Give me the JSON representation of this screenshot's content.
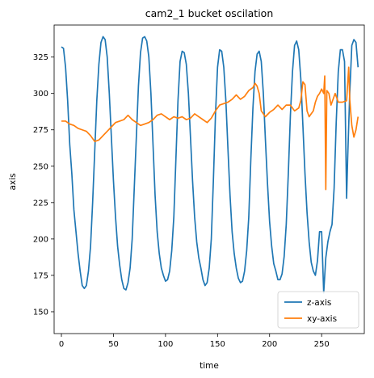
{
  "chart_data": {
    "type": "line",
    "title": "cam2_1 bucket oscilation",
    "xlabel": "time",
    "ylabel": "axis",
    "xlim": [
      -7,
      291
    ],
    "ylim": [
      135,
      347
    ],
    "xticks": [
      0,
      50,
      100,
      150,
      200,
      250
    ],
    "yticks": [
      150,
      175,
      200,
      225,
      250,
      275,
      300,
      325
    ],
    "grid": false,
    "legend_position": "lower-right",
    "series": [
      {
        "name": "z-axis",
        "color": "#1f77b4",
        "points": [
          [
            0,
            332
          ],
          [
            2,
            331
          ],
          [
            4,
            318
          ],
          [
            6,
            295
          ],
          [
            8,
            265
          ],
          [
            10,
            245
          ],
          [
            12,
            220
          ],
          [
            14,
            205
          ],
          [
            16,
            190
          ],
          [
            18,
            178
          ],
          [
            20,
            168
          ],
          [
            22,
            166
          ],
          [
            24,
            168
          ],
          [
            26,
            178
          ],
          [
            28,
            195
          ],
          [
            30,
            225
          ],
          [
            32,
            260
          ],
          [
            34,
            295
          ],
          [
            36,
            320
          ],
          [
            38,
            335
          ],
          [
            40,
            339
          ],
          [
            42,
            337
          ],
          [
            44,
            325
          ],
          [
            46,
            300
          ],
          [
            48,
            270
          ],
          [
            50,
            240
          ],
          [
            52,
            215
          ],
          [
            54,
            195
          ],
          [
            56,
            182
          ],
          [
            58,
            172
          ],
          [
            60,
            166
          ],
          [
            62,
            165
          ],
          [
            64,
            170
          ],
          [
            66,
            180
          ],
          [
            68,
            200
          ],
          [
            70,
            235
          ],
          [
            72,
            270
          ],
          [
            74,
            305
          ],
          [
            76,
            328
          ],
          [
            78,
            338
          ],
          [
            80,
            339
          ],
          [
            82,
            336
          ],
          [
            84,
            325
          ],
          [
            86,
            300
          ],
          [
            88,
            265
          ],
          [
            90,
            230
          ],
          [
            92,
            205
          ],
          [
            94,
            190
          ],
          [
            96,
            180
          ],
          [
            98,
            175
          ],
          [
            100,
            171
          ],
          [
            102,
            172
          ],
          [
            104,
            178
          ],
          [
            106,
            192
          ],
          [
            108,
            215
          ],
          [
            110,
            255
          ],
          [
            112,
            295
          ],
          [
            114,
            322
          ],
          [
            116,
            329
          ],
          [
            118,
            328
          ],
          [
            120,
            320
          ],
          [
            122,
            300
          ],
          [
            124,
            270
          ],
          [
            126,
            240
          ],
          [
            128,
            215
          ],
          [
            130,
            198
          ],
          [
            132,
            187
          ],
          [
            134,
            180
          ],
          [
            136,
            172
          ],
          [
            138,
            168
          ],
          [
            140,
            170
          ],
          [
            142,
            180
          ],
          [
            144,
            200
          ],
          [
            146,
            240
          ],
          [
            148,
            285
          ],
          [
            150,
            318
          ],
          [
            152,
            330
          ],
          [
            154,
            329
          ],
          [
            156,
            318
          ],
          [
            158,
            295
          ],
          [
            160,
            262
          ],
          [
            162,
            230
          ],
          [
            164,
            205
          ],
          [
            166,
            190
          ],
          [
            168,
            180
          ],
          [
            170,
            173
          ],
          [
            172,
            170
          ],
          [
            174,
            171
          ],
          [
            176,
            178
          ],
          [
            178,
            192
          ],
          [
            180,
            215
          ],
          [
            182,
            255
          ],
          [
            184,
            290
          ],
          [
            186,
            315
          ],
          [
            188,
            327
          ],
          [
            190,
            329
          ],
          [
            192,
            322
          ],
          [
            194,
            300
          ],
          [
            196,
            268
          ],
          [
            198,
            238
          ],
          [
            200,
            212
          ],
          [
            202,
            195
          ],
          [
            204,
            183
          ],
          [
            206,
            178
          ],
          [
            208,
            172
          ],
          [
            210,
            172
          ],
          [
            212,
            176
          ],
          [
            214,
            188
          ],
          [
            216,
            210
          ],
          [
            218,
            245
          ],
          [
            220,
            285
          ],
          [
            222,
            315
          ],
          [
            224,
            333
          ],
          [
            226,
            336
          ],
          [
            228,
            330
          ],
          [
            230,
            310
          ],
          [
            232,
            278
          ],
          [
            234,
            245
          ],
          [
            236,
            218
          ],
          [
            238,
            198
          ],
          [
            240,
            184
          ],
          [
            242,
            178
          ],
          [
            244,
            175
          ],
          [
            246,
            185
          ],
          [
            248,
            205
          ],
          [
            250,
            205
          ],
          [
            252,
            163
          ],
          [
            254,
            187
          ],
          [
            256,
            198
          ],
          [
            258,
            205
          ],
          [
            260,
            210
          ],
          [
            262,
            235
          ],
          [
            264,
            280
          ],
          [
            266,
            315
          ],
          [
            268,
            330
          ],
          [
            270,
            330
          ],
          [
            272,
            322
          ],
          [
            274,
            228
          ],
          [
            275,
            255
          ],
          [
            277,
            300
          ],
          [
            279,
            333
          ],
          [
            281,
            337
          ],
          [
            283,
            335
          ],
          [
            285,
            318
          ]
        ]
      },
      {
        "name": "xy-axis",
        "color": "#ff7f0e",
        "points": [
          [
            0,
            281
          ],
          [
            4,
            281
          ],
          [
            8,
            279
          ],
          [
            12,
            278
          ],
          [
            16,
            276
          ],
          [
            20,
            275
          ],
          [
            24,
            274
          ],
          [
            28,
            271
          ],
          [
            32,
            267
          ],
          [
            36,
            268
          ],
          [
            40,
            271
          ],
          [
            44,
            274
          ],
          [
            48,
            277
          ],
          [
            52,
            280
          ],
          [
            56,
            281
          ],
          [
            60,
            282
          ],
          [
            64,
            285
          ],
          [
            68,
            282
          ],
          [
            72,
            280
          ],
          [
            76,
            278
          ],
          [
            80,
            279
          ],
          [
            84,
            280
          ],
          [
            88,
            282
          ],
          [
            92,
            285
          ],
          [
            96,
            286
          ],
          [
            100,
            284
          ],
          [
            104,
            282
          ],
          [
            108,
            284
          ],
          [
            112,
            283
          ],
          [
            116,
            284
          ],
          [
            120,
            282
          ],
          [
            124,
            283
          ],
          [
            128,
            286
          ],
          [
            132,
            284
          ],
          [
            136,
            282
          ],
          [
            140,
            280
          ],
          [
            144,
            283
          ],
          [
            148,
            288
          ],
          [
            152,
            292
          ],
          [
            156,
            293
          ],
          [
            160,
            294
          ],
          [
            164,
            296
          ],
          [
            168,
            299
          ],
          [
            172,
            296
          ],
          [
            176,
            298
          ],
          [
            180,
            302
          ],
          [
            184,
            304
          ],
          [
            186,
            307
          ],
          [
            188,
            305
          ],
          [
            190,
            300
          ],
          [
            192,
            288
          ],
          [
            196,
            284
          ],
          [
            200,
            287
          ],
          [
            204,
            289
          ],
          [
            208,
            292
          ],
          [
            212,
            289
          ],
          [
            216,
            292
          ],
          [
            220,
            292
          ],
          [
            224,
            288
          ],
          [
            228,
            290
          ],
          [
            230,
            295
          ],
          [
            232,
            308
          ],
          [
            234,
            306
          ],
          [
            236,
            288
          ],
          [
            238,
            284
          ],
          [
            240,
            286
          ],
          [
            242,
            288
          ],
          [
            244,
            294
          ],
          [
            246,
            298
          ],
          [
            248,
            300
          ],
          [
            250,
            303
          ],
          [
            252,
            300
          ],
          [
            253,
            312
          ],
          [
            254,
            234
          ],
          [
            255,
            302
          ],
          [
            257,
            300
          ],
          [
            259,
            292
          ],
          [
            261,
            296
          ],
          [
            263,
            300
          ],
          [
            266,
            294
          ],
          [
            270,
            294
          ],
          [
            274,
            295
          ],
          [
            276,
            318
          ],
          [
            277,
            296
          ],
          [
            279,
            278
          ],
          [
            281,
            270
          ],
          [
            283,
            275
          ],
          [
            285,
            284
          ]
        ]
      }
    ]
  }
}
